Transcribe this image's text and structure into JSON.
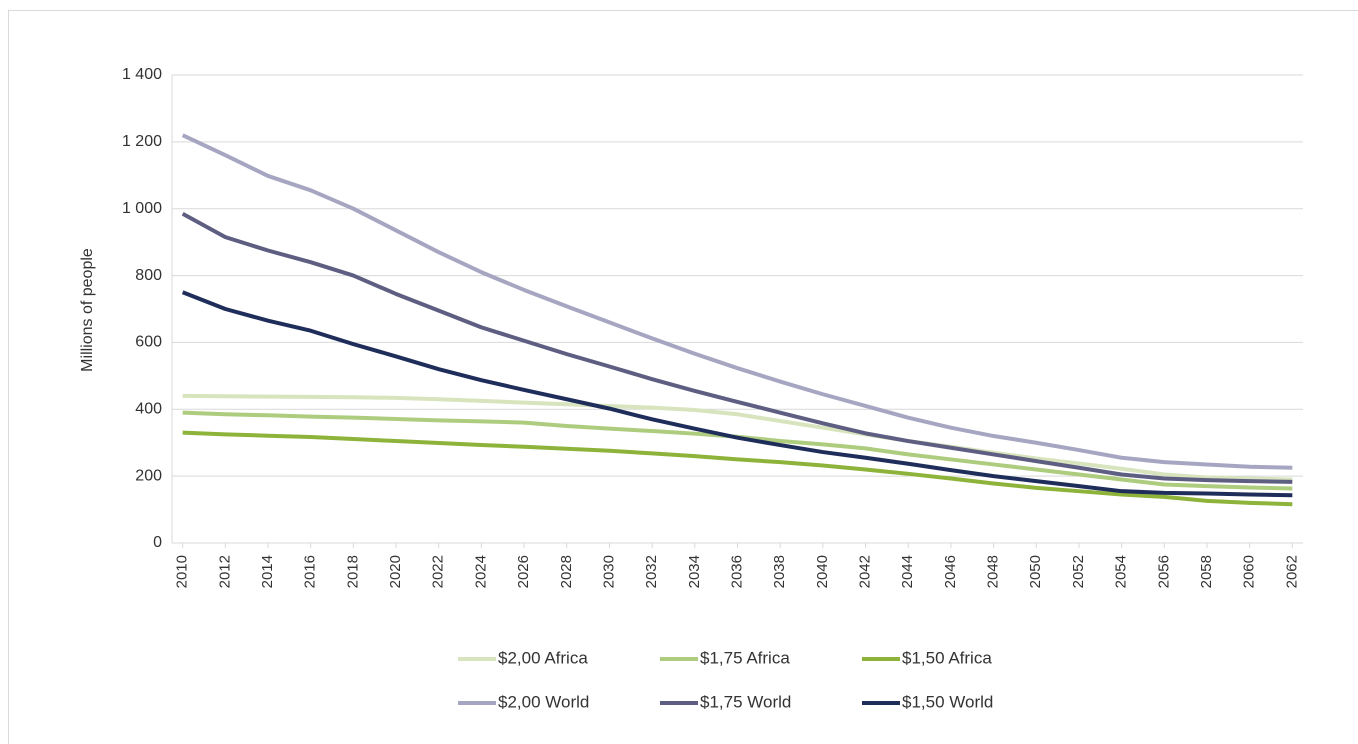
{
  "chart_data": {
    "type": "line",
    "y_label": "Millions of people",
    "x": [
      2010,
      2012,
      2014,
      2016,
      2018,
      2020,
      2022,
      2024,
      2026,
      2028,
      2030,
      2032,
      2034,
      2036,
      2038,
      2040,
      2042,
      2044,
      2046,
      2048,
      2050,
      2052,
      2054,
      2056,
      2058,
      2060,
      2062
    ],
    "xlim": [
      2009.5,
      2062.5
    ],
    "xticks": [
      2010,
      2012,
      2014,
      2016,
      2018,
      2020,
      2022,
      2024,
      2026,
      2028,
      2030,
      2032,
      2034,
      2036,
      2038,
      2040,
      2042,
      2044,
      2046,
      2048,
      2050,
      2052,
      2054,
      2056,
      2058,
      2060,
      2062
    ],
    "ylim": [
      0,
      1400
    ],
    "yticks": [
      0,
      200,
      400,
      600,
      800,
      {
        "value": 1000,
        "label": "1 000"
      },
      {
        "value": 1200,
        "label": "1 200"
      },
      {
        "value": 1400,
        "label": "1 400"
      }
    ],
    "grid": true,
    "legend": "bottom",
    "series": [
      {
        "name": "$2,00 Africa",
        "color": "#d7e4bd",
        "values": [
          440,
          439,
          438,
          437,
          436,
          434,
          430,
          425,
          420,
          415,
          410,
          405,
          398,
          385,
          365,
          345,
          325,
          305,
          288,
          270,
          253,
          238,
          222,
          205,
          196,
          193,
          190
        ]
      },
      {
        "name": "$1,75 Africa",
        "color": "#adcc7e",
        "values": [
          390,
          385,
          382,
          378,
          375,
          371,
          367,
          364,
          360,
          350,
          342,
          335,
          327,
          318,
          305,
          295,
          283,
          265,
          250,
          235,
          220,
          205,
          190,
          175,
          170,
          166,
          163
        ]
      },
      {
        "name": "$1,50 Africa",
        "color": "#8db33a",
        "values": [
          330,
          325,
          321,
          317,
          311,
          305,
          299,
          293,
          288,
          282,
          276,
          268,
          260,
          250,
          242,
          232,
          220,
          207,
          193,
          178,
          165,
          155,
          145,
          138,
          126,
          120,
          116
        ]
      },
      {
        "name": "$2,00 World",
        "color": "#a6a6c2",
        "values": [
          1220,
          1160,
          1098,
          1055,
          1000,
          935,
          870,
          810,
          757,
          708,
          660,
          612,
          566,
          523,
          483,
          445,
          410,
          375,
          345,
          320,
          300,
          278,
          255,
          242,
          235,
          228,
          225
        ]
      },
      {
        "name": "$1,75 World",
        "color": "#5e5e82",
        "values": [
          985,
          915,
          875,
          840,
          800,
          745,
          695,
          645,
          605,
          565,
          528,
          490,
          455,
          422,
          390,
          358,
          328,
          305,
          285,
          265,
          245,
          225,
          205,
          193,
          188,
          185,
          183
        ]
      },
      {
        "name": "$1,50 World",
        "color": "#1f2d5a",
        "values": [
          750,
          700,
          665,
          635,
          595,
          558,
          520,
          487,
          458,
          430,
          402,
          370,
          342,
          315,
          293,
          272,
          255,
          237,
          218,
          200,
          185,
          170,
          155,
          150,
          148,
          145,
          143
        ]
      }
    ]
  }
}
